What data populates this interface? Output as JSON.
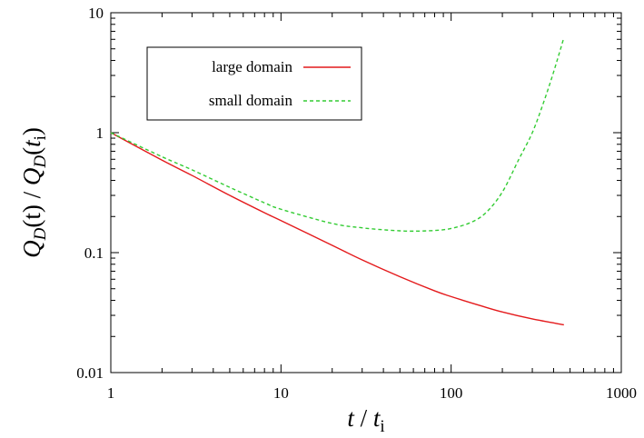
{
  "chart_data": {
    "type": "line",
    "xscale": "log",
    "yscale": "log",
    "xlim": [
      1,
      1000
    ],
    "ylim": [
      0.01,
      10
    ],
    "grid": false,
    "legend_position": "top-left",
    "xticks": [
      {
        "value": 1,
        "label": "1"
      },
      {
        "value": 10,
        "label": "10"
      },
      {
        "value": 100,
        "label": "100"
      },
      {
        "value": 1000,
        "label": "1000"
      }
    ],
    "yticks": [
      {
        "value": 0.01,
        "label": "0.01"
      },
      {
        "value": 0.1,
        "label": "0.1"
      },
      {
        "value": 1,
        "label": "1"
      },
      {
        "value": 10,
        "label": "10"
      }
    ],
    "xlabel": {
      "italic_1": "t",
      "mid": " / ",
      "italic_2": "t",
      "sub": "i"
    },
    "ylabel": {
      "q1": "Q",
      "d1": "D",
      "t1": "(t)",
      "mid": " / ",
      "q2": "Q",
      "d2": "D",
      "open": "(",
      "t2": "t",
      "i": "i",
      "close": ")"
    },
    "series": [
      {
        "name": "large domain",
        "color": "#e41a1c",
        "dash": "solid",
        "x": [
          1,
          2,
          3,
          5,
          8,
          10,
          20,
          30,
          50,
          80,
          100,
          150,
          200,
          300,
          460
        ],
        "y": [
          1.0,
          0.59,
          0.44,
          0.3,
          0.215,
          0.185,
          0.115,
          0.087,
          0.063,
          0.048,
          0.043,
          0.036,
          0.032,
          0.028,
          0.025
        ]
      },
      {
        "name": "small domain",
        "color": "#33cc33",
        "dash": "dashed",
        "x": [
          1,
          2,
          3,
          5,
          8,
          10,
          20,
          30,
          40,
          50,
          60,
          80,
          100,
          130,
          160,
          200,
          250,
          300,
          350,
          400,
          460
        ],
        "y": [
          1.0,
          0.63,
          0.49,
          0.35,
          0.26,
          0.23,
          0.175,
          0.161,
          0.155,
          0.152,
          0.151,
          0.153,
          0.159,
          0.178,
          0.215,
          0.32,
          0.6,
          1.0,
          1.8,
          3.2,
          6.2
        ]
      }
    ]
  }
}
